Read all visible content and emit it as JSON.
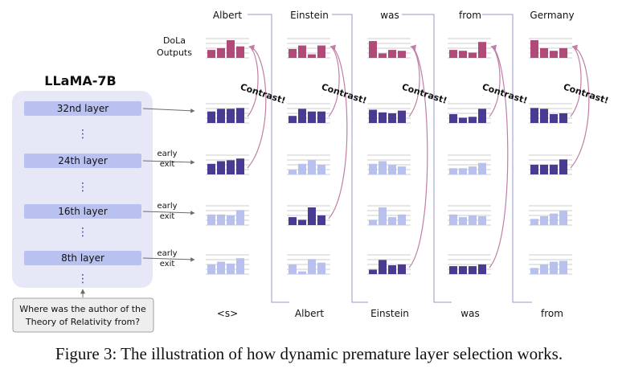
{
  "model": {
    "title": "LLaMA-7B",
    "layers": [
      "32nd layer",
      "24th layer",
      "16th layer",
      "8th layer"
    ],
    "ellipsis": "⋮"
  },
  "early_exit_label": [
    "early",
    "exit"
  ],
  "input_question": [
    "Where was the author of the",
    "Theory of Relativity from?"
  ],
  "dola_label": [
    "DoLa",
    "Outputs"
  ],
  "contrast_label": "Contrast!",
  "output_tokens": [
    "Albert",
    "Einstein",
    "was",
    "from",
    "Germany"
  ],
  "input_tokens": [
    "<s>",
    "Albert",
    "Einstein",
    "was",
    "from"
  ],
  "caption": "Figure 3: The illustration of how dynamic premature layer selection works.",
  "colors": {
    "dola": "#b04b79",
    "selected": "#4b3a92",
    "unselected": "#b8c0ee",
    "contrast_arrow": "#c07fa6",
    "panel_bg": "#e6e8f8",
    "layer_box": "#b8c1f0"
  },
  "bar_levels": {
    "columns": [
      {
        "dola": [
          0.45,
          0.55,
          1.0,
          0.65
        ],
        "layer32": [
          0.65,
          0.8,
          0.8,
          0.85
        ],
        "layer24": [
          0.6,
          0.75,
          0.8,
          0.9
        ],
        "layer16": [
          0.6,
          0.6,
          0.55,
          0.85
        ],
        "layer8": [
          0.55,
          0.7,
          0.6,
          0.9
        ]
      },
      {
        "dola": [
          0.5,
          0.7,
          0.2,
          0.7
        ],
        "layer32": [
          0.4,
          0.8,
          0.65,
          0.65
        ],
        "layer24": [
          0.25,
          0.6,
          0.8,
          0.55
        ],
        "layer16": [
          0.45,
          0.3,
          1.0,
          0.55
        ],
        "layer8": [
          0.55,
          0.15,
          0.85,
          0.65
        ]
      },
      {
        "dola": [
          0.95,
          0.25,
          0.45,
          0.4
        ],
        "layer32": [
          0.75,
          0.6,
          0.55,
          0.7
        ],
        "layer24": [
          0.6,
          0.75,
          0.55,
          0.45
        ],
        "layer16": [
          0.3,
          1.0,
          0.45,
          0.6
        ],
        "layer8": [
          0.25,
          0.8,
          0.5,
          0.55
        ]
      },
      {
        "dola": [
          0.45,
          0.4,
          0.3,
          0.9
        ],
        "layer32": [
          0.5,
          0.3,
          0.35,
          0.8
        ],
        "layer24": [
          0.35,
          0.35,
          0.45,
          0.65
        ],
        "layer16": [
          0.6,
          0.45,
          0.55,
          0.5
        ],
        "layer8": [
          0.45,
          0.45,
          0.45,
          0.55
        ]
      },
      {
        "dola": [
          1.0,
          0.55,
          0.4,
          0.55
        ],
        "layer32": [
          0.85,
          0.8,
          0.5,
          0.55
        ],
        "layer24": [
          0.55,
          0.55,
          0.55,
          0.85
        ],
        "layer16": [
          0.35,
          0.5,
          0.65,
          0.8
        ],
        "layer8": [
          0.35,
          0.55,
          0.7,
          0.75
        ]
      }
    ],
    "selected_premature_layer": [
      "layer24",
      "layer16",
      "layer8",
      "layer8",
      "layer24"
    ]
  }
}
